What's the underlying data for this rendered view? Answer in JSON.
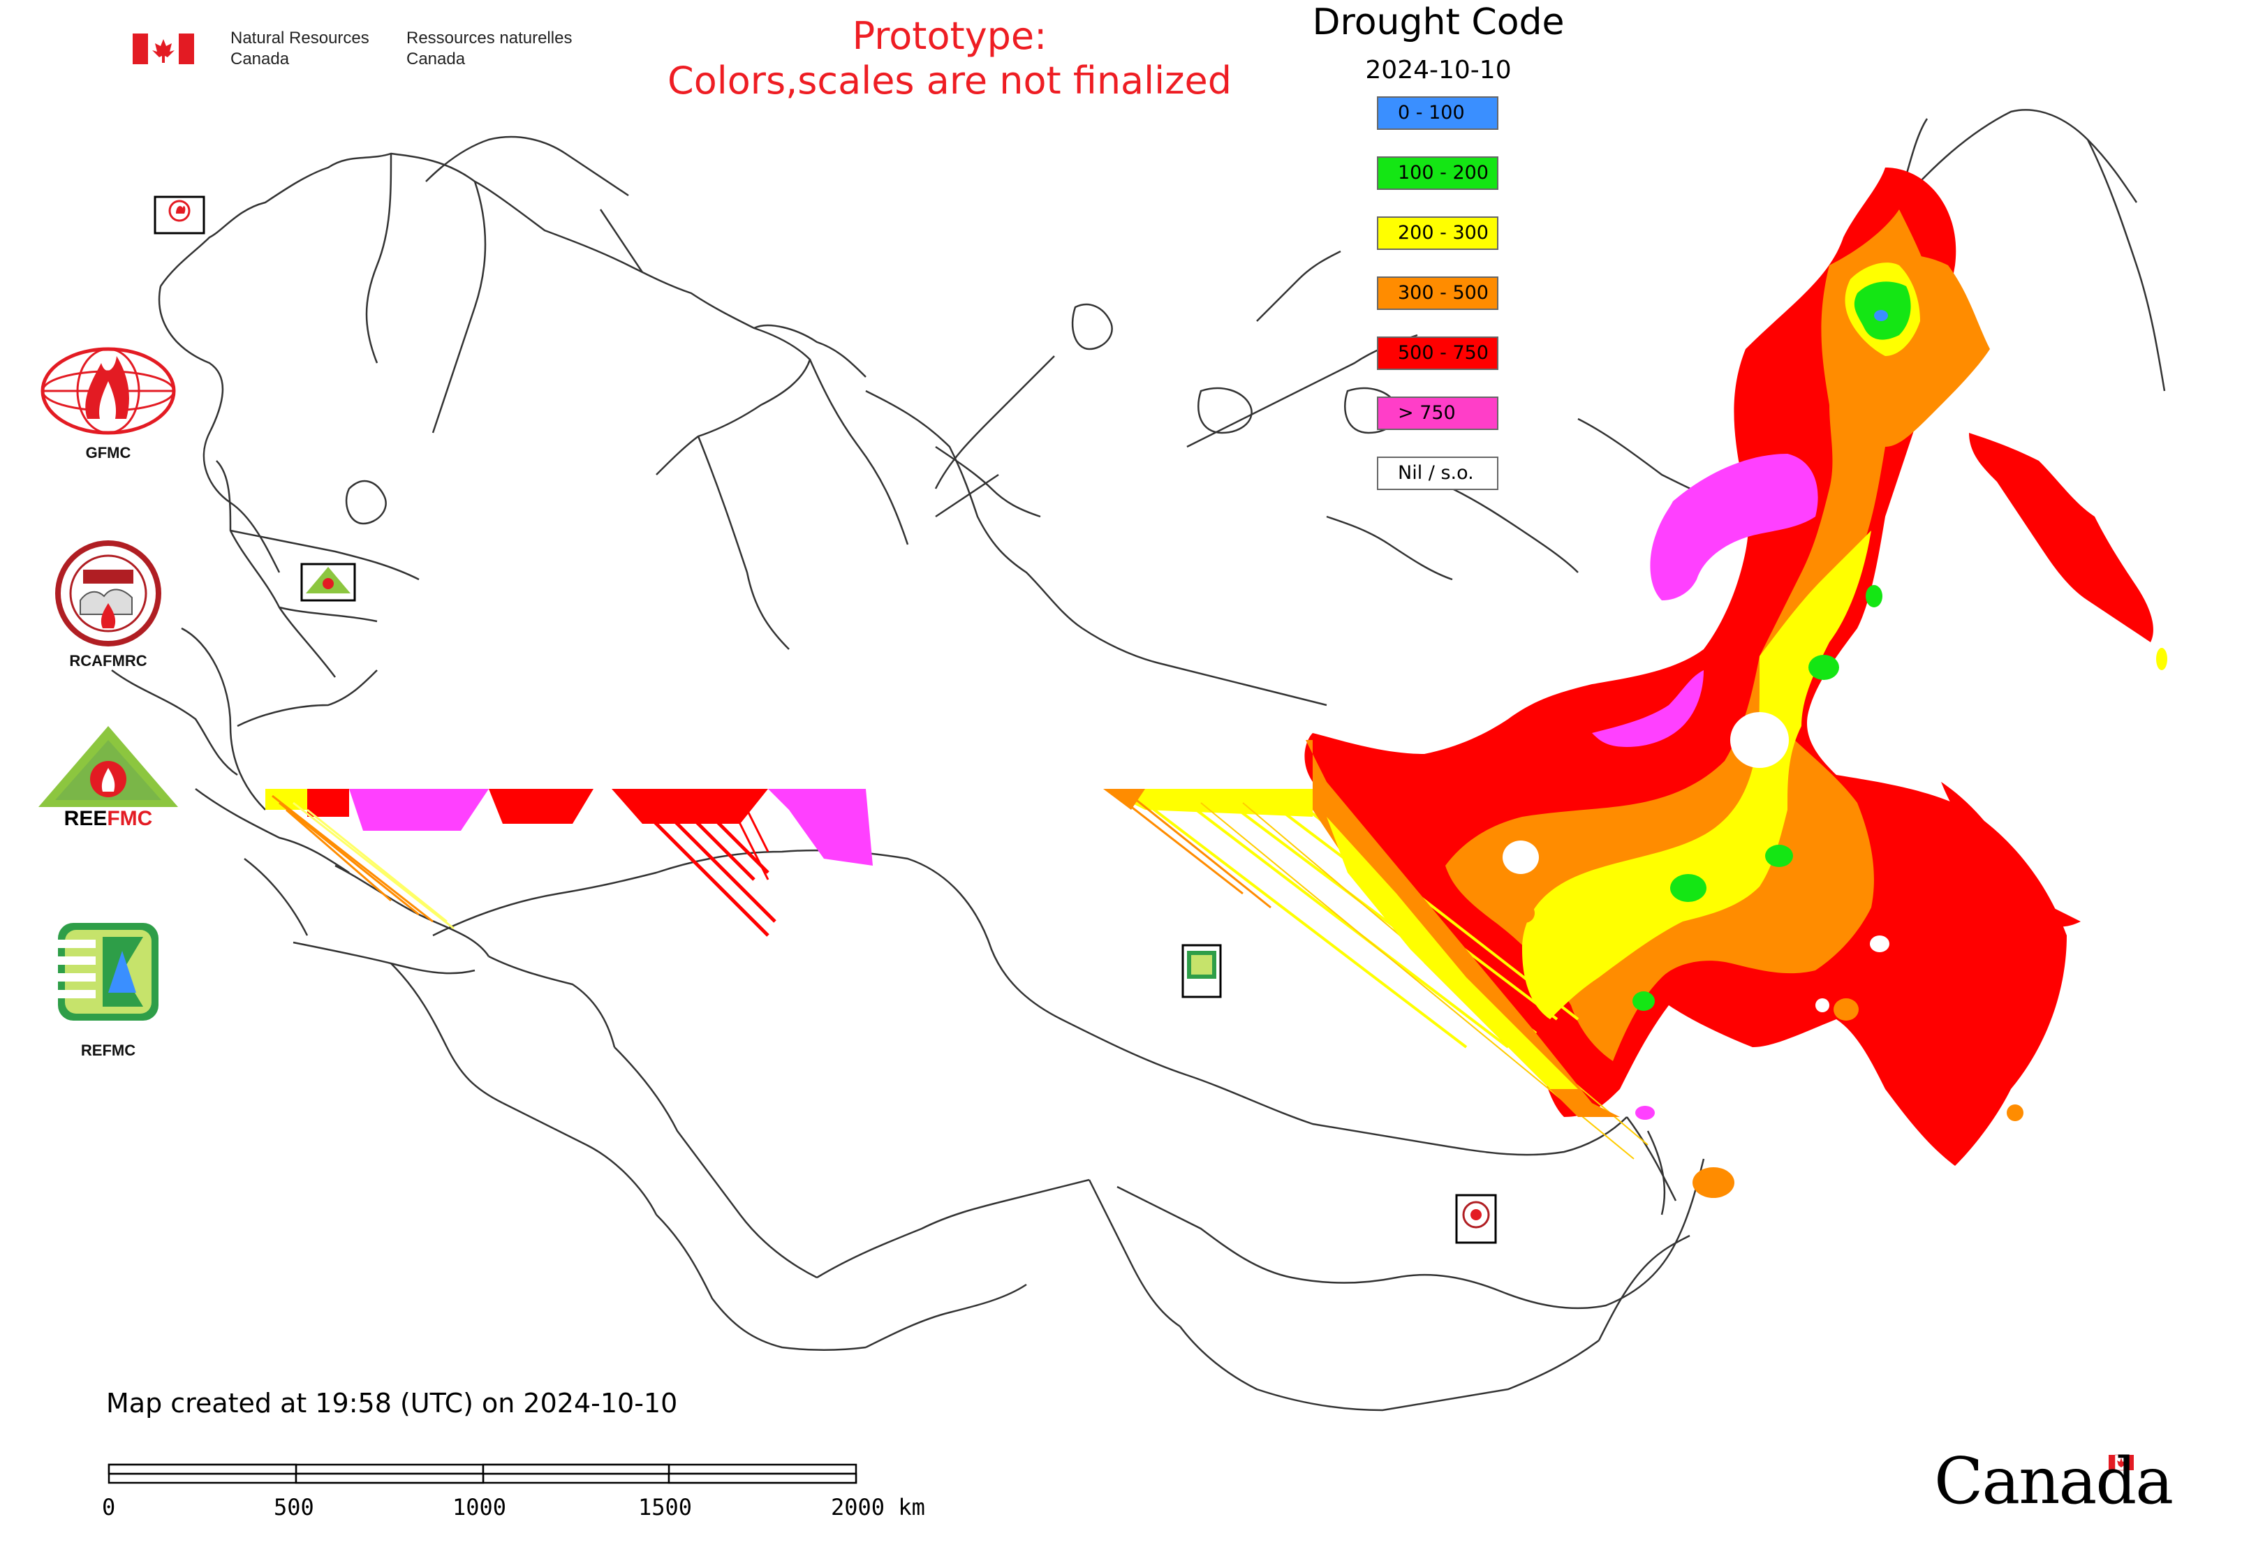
{
  "header": {
    "gov_en_line1": "Natural Resources",
    "gov_en_line2": "Canada",
    "gov_fr_line1": "Ressources naturelles",
    "gov_fr_line2": "Canada",
    "prototype_line1": "Prototype:",
    "prototype_line2": "Colors,scales are not finalized"
  },
  "legend": {
    "title": "Drought Code",
    "date": "2024-10-10",
    "items": [
      {
        "label": "0 - 100",
        "color": "#3a8fff"
      },
      {
        "label": "100 - 200",
        "color": "#14e614"
      },
      {
        "label": "200 - 300",
        "color": "#ffff00"
      },
      {
        "label": "300 - 500",
        "color": "#ff8c00"
      },
      {
        "label": "500 - 750",
        "color": "#ff0000"
      },
      {
        "label": "> 750",
        "color": "#ff3ec8"
      },
      {
        "label": "Nil / s.o.",
        "color": "#ffffff"
      }
    ]
  },
  "logos": [
    {
      "name": "GFMC",
      "icon": "gfmc-logo-icon"
    },
    {
      "name": "RCAFMRC",
      "icon": "rcafmrc-logo-icon"
    },
    {
      "name": "REEFMC",
      "icon": "reefmc-logo-icon"
    },
    {
      "name": "REFMC",
      "icon": "refmc-logo-icon"
    }
  ],
  "map_markers": [
    "GFMC",
    "REEFMC",
    "REFMC",
    "RCAFMRC"
  ],
  "footer": {
    "created": "Map created at 19:58 (UTC) on 2024-10-10",
    "scale_labels": [
      "0",
      "500",
      "1000",
      "1500",
      "2000 km"
    ],
    "wordmark": "Canada"
  }
}
